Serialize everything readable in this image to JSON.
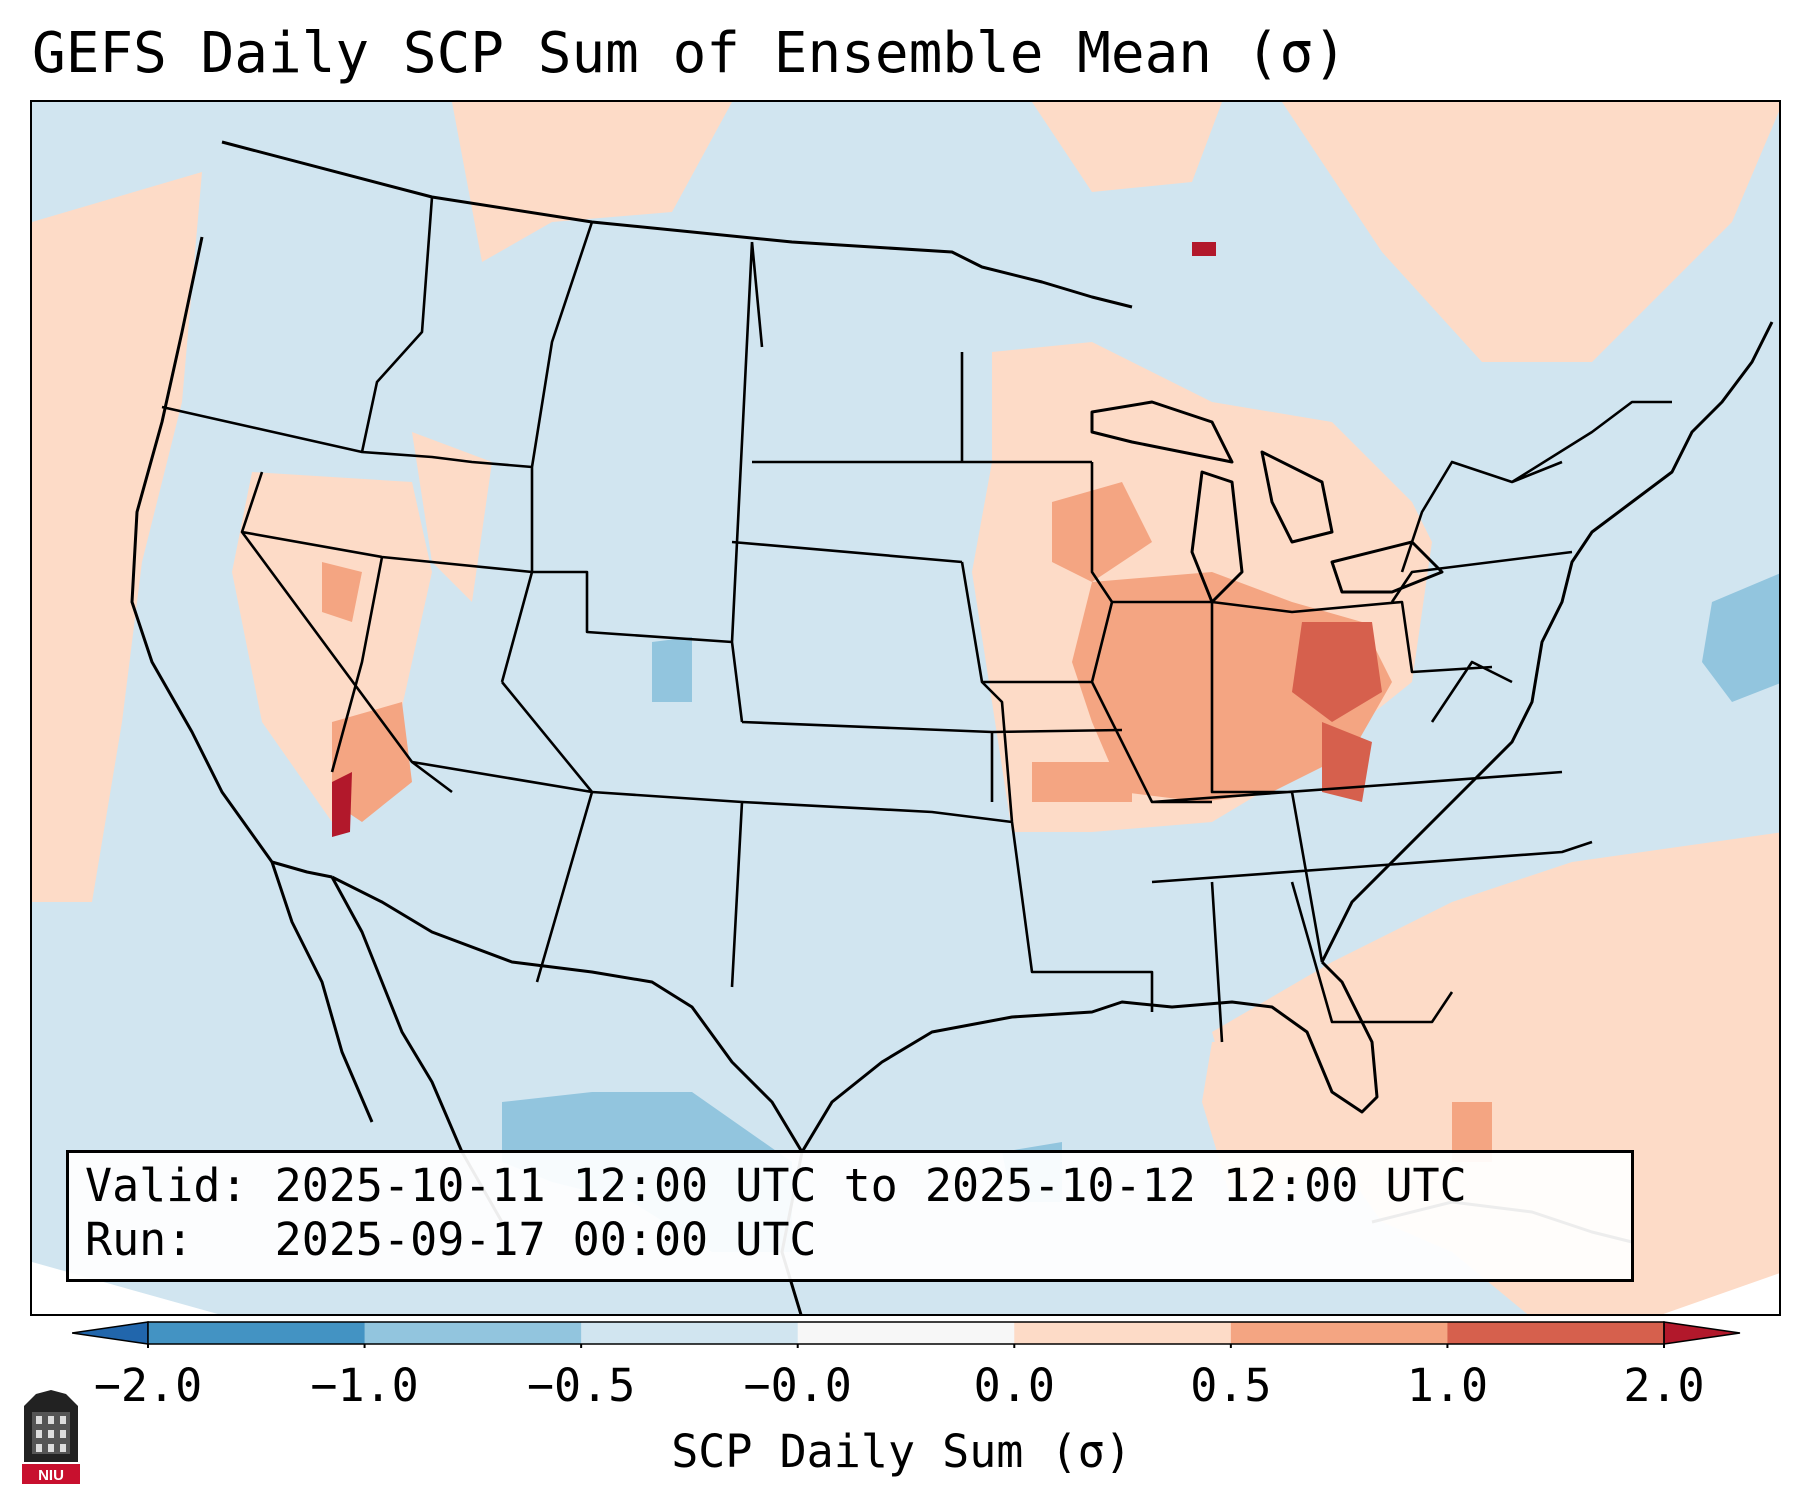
{
  "title": "GEFS Daily SCP Sum of Ensemble Mean (σ)",
  "info": {
    "valid_label": "Valid:",
    "valid_value": "2025-10-11 12:00 UTC to 2025-10-12 12:00 UTC",
    "run_label": "Run:",
    "run_value": "2025-09-17 00:00 UTC"
  },
  "colorbar": {
    "label": "SCP Daily Sum (σ)",
    "ticks": [
      "−2.0",
      "−1.0",
      "−0.5",
      "−0.0",
      "0.0",
      "0.5",
      "1.0",
      "2.0"
    ],
    "colors": [
      "#4393c3",
      "#92c5de",
      "#d1e5f0",
      "#f7f7f7",
      "#fddbc7",
      "#f4a582",
      "#d6604d"
    ],
    "under_color": "#2166ac",
    "over_color": "#b2182b"
  },
  "map_colors": {
    "background": "#d1e5f0",
    "light_red": "#fddbc7",
    "mid_red": "#f4a582",
    "strong_red": "#d6604d",
    "dark_red": "#b2182b",
    "light_blue": "#92c5de"
  },
  "logo": {
    "text": "NIU",
    "icon": "niu-logo-icon"
  }
}
